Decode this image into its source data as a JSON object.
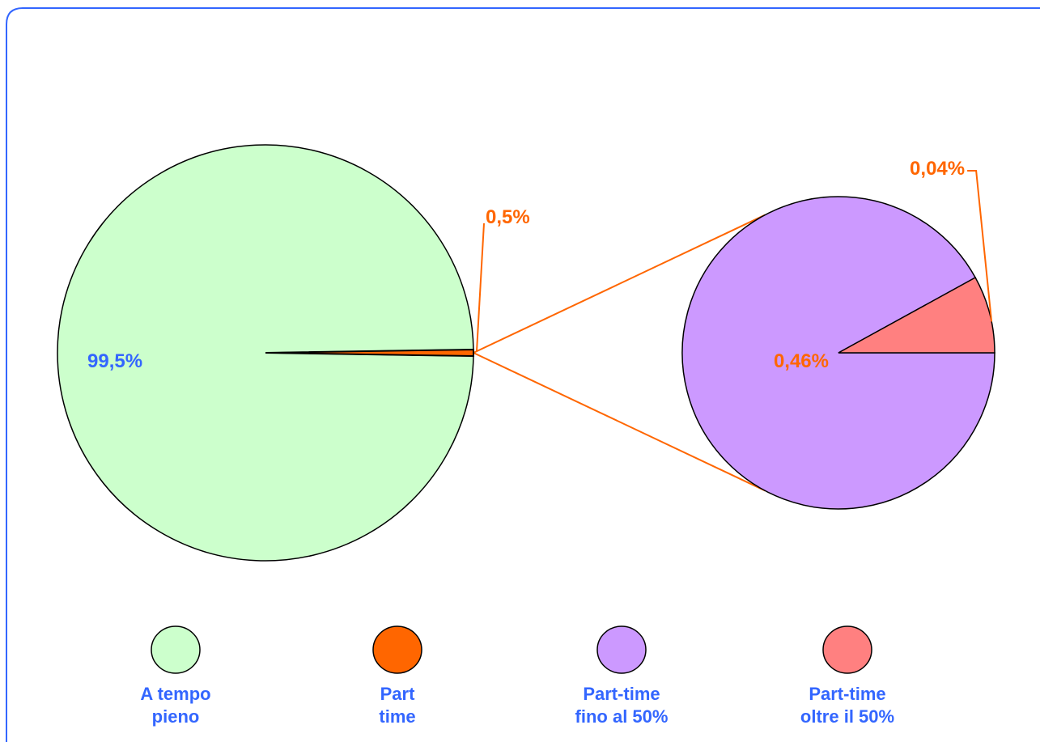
{
  "colors": {
    "frame": "#3366ff",
    "leader": "#ff6600",
    "outline": "#000000",
    "label_blue": "#3366ff",
    "label_orange": "#ff6600"
  },
  "chart_data": [
    {
      "type": "pie",
      "categories": [
        "A tempo pieno",
        "Part time"
      ],
      "values": [
        99.5,
        0.5
      ],
      "data_labels": [
        "99,5%",
        "0,5%"
      ],
      "colors": [
        "#ccffcc",
        "#ff6600"
      ]
    },
    {
      "type": "pie",
      "categories": [
        "Part-time fino al 50%",
        "Part-time oltre il 50%"
      ],
      "values": [
        0.46,
        0.04
      ],
      "data_labels": [
        "0,46%",
        "0,04%"
      ],
      "colors": [
        "#cc99ff",
        "#ff8080"
      ]
    }
  ],
  "legend": {
    "placement": "bottom",
    "items": [
      {
        "line1": "A tempo",
        "line2": "pieno",
        "color": "#ccffcc"
      },
      {
        "line1": "Part",
        "line2": "time",
        "color": "#ff6600"
      },
      {
        "line1": "Part-time",
        "line2": "fino al 50%",
        "color": "#cc99ff"
      },
      {
        "line1": "Part-time",
        "line2": "oltre il 50%",
        "color": "#ff8080"
      }
    ]
  }
}
